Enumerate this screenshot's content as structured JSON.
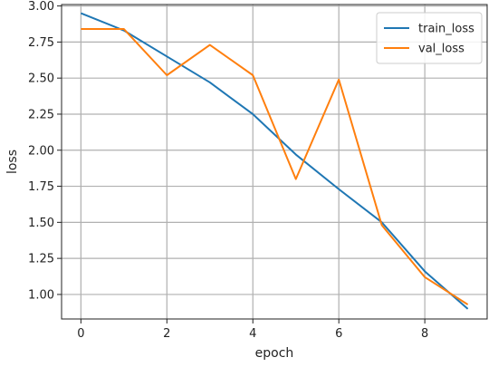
{
  "chart_data": {
    "type": "line",
    "title": "",
    "xlabel": "epoch",
    "ylabel": "loss",
    "x": [
      0,
      1,
      2,
      3,
      4,
      5,
      6,
      7,
      8,
      9
    ],
    "xlim": [
      -0.45,
      9.45
    ],
    "ylim": [
      0.83,
      3.01
    ],
    "xticks": [
      0,
      2,
      4,
      6,
      8
    ],
    "yticks": [
      1.0,
      1.25,
      1.5,
      1.75,
      2.0,
      2.25,
      2.5,
      2.75,
      3.0
    ],
    "ytick_labels": [
      "1.00",
      "1.25",
      "1.50",
      "1.75",
      "2.00",
      "2.25",
      "2.50",
      "2.75",
      "3.00"
    ],
    "grid": true,
    "legend_position": "top-right",
    "series": [
      {
        "name": "train_loss",
        "color": "#1f77b4",
        "values": [
          2.95,
          2.83,
          2.65,
          2.47,
          2.25,
          1.97,
          1.73,
          1.5,
          1.16,
          0.9
        ]
      },
      {
        "name": "val_loss",
        "color": "#ff7f0e",
        "values": [
          2.84,
          2.84,
          2.52,
          2.73,
          2.52,
          1.8,
          2.49,
          1.48,
          1.12,
          0.93
        ]
      }
    ]
  }
}
